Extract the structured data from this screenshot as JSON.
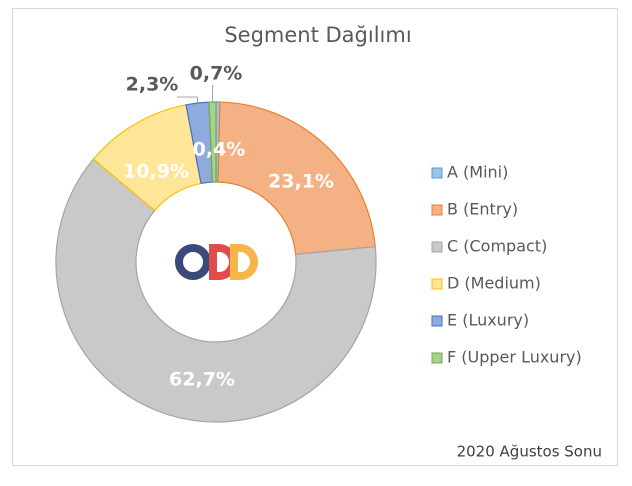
{
  "chart_data": {
    "type": "donut",
    "title": "Segment Dağılımı",
    "categories": [
      "A (Mini)",
      "B (Entry)",
      "C (Compact)",
      "D (Medium)",
      "E (Luxury)",
      "F (Upper Luxury)"
    ],
    "values": [
      0.4,
      23.1,
      62.7,
      10.9,
      2.3,
      0.7
    ],
    "value_labels": [
      "0,4%",
      "23,1%",
      "62,7%",
      "10,9%",
      "2,3%",
      "0,7%"
    ],
    "colors": [
      "#9dc3e6",
      "#f4b183",
      "#c9c9c9",
      "#ffe699",
      "#8faadc",
      "#a9d18e"
    ],
    "edge_colors": [
      "#5b9bd5",
      "#ed7d31",
      "#a5a5a5",
      "#ffc000",
      "#4472c4",
      "#70ad47"
    ],
    "legend": "right",
    "annotation": "2020 Ağustos Sonu"
  }
}
